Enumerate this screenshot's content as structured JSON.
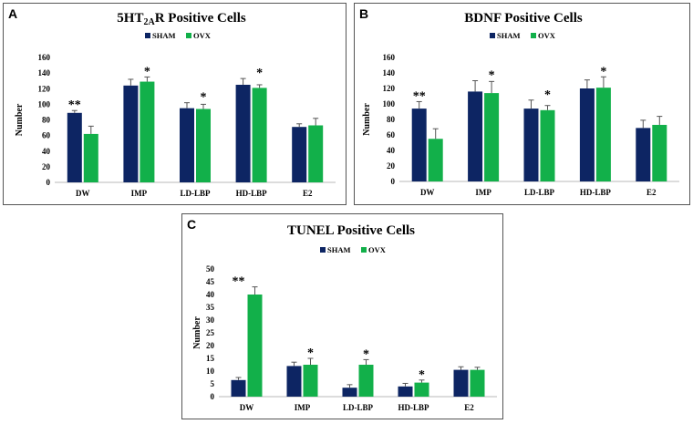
{
  "colors": {
    "sham": "#0d2563",
    "ovx": "#12b04a",
    "axis": "#b8b8b8",
    "error": "#555555"
  },
  "chart_data": [
    {
      "panel_label": "A",
      "type": "bar",
      "title": "5HT2AR Positive Cells",
      "title_parts": {
        "pre": "5HT",
        "sub": "2A",
        "post": "R Positive Cells"
      },
      "xlabel": "",
      "ylabel": "Number",
      "ylim": [
        0,
        160
      ],
      "yticks": [
        "0",
        "20",
        "40",
        "60",
        "80",
        "100",
        "120",
        "140",
        "160"
      ],
      "categories": [
        "DW",
        "IMP",
        "LD-LBP",
        "HD-LBP",
        "E2"
      ],
      "series": [
        {
          "name": "SHAM",
          "values": [
            89,
            124,
            95,
            125,
            71
          ],
          "errors": [
            3,
            8,
            7,
            8,
            4
          ]
        },
        {
          "name": "OVX",
          "values": [
            62,
            129,
            94,
            121,
            73
          ],
          "errors": [
            10,
            6,
            6,
            4,
            9
          ]
        }
      ],
      "annotations": [
        "**",
        "*",
        "*",
        "*",
        ""
      ]
    },
    {
      "panel_label": "B",
      "type": "bar",
      "title": "BDNF Positive Cells",
      "xlabel": "",
      "ylabel": "Number",
      "ylim": [
        0,
        160
      ],
      "yticks": [
        "0",
        "20",
        "40",
        "60",
        "80",
        "100",
        "120",
        "140",
        "160"
      ],
      "categories": [
        "DW",
        "IMP",
        "LD-LBP",
        "HD-LBP",
        "E2"
      ],
      "series": [
        {
          "name": "SHAM",
          "values": [
            94,
            116,
            94,
            120,
            69
          ],
          "errors": [
            9,
            14,
            11,
            11,
            10
          ]
        },
        {
          "name": "OVX",
          "values": [
            55,
            114,
            92,
            121,
            73
          ],
          "errors": [
            13,
            15,
            6,
            14,
            11
          ]
        }
      ],
      "annotations": [
        "**",
        "*",
        "*",
        "*",
        ""
      ]
    },
    {
      "panel_label": "C",
      "type": "bar",
      "title": "TUNEL Positive Cells",
      "xlabel": "",
      "ylabel": "Number",
      "ylim": [
        0,
        50
      ],
      "yticks": [
        "0",
        "5",
        "10",
        "15",
        "20",
        "25",
        "30",
        "35",
        "40",
        "45",
        "50"
      ],
      "categories": [
        "DW",
        "IMP",
        "LD-LBP",
        "HD-LBP",
        "E2"
      ],
      "series": [
        {
          "name": "SHAM",
          "values": [
            6.5,
            12,
            3.5,
            4,
            10.5
          ],
          "errors": [
            1,
            1.5,
            1.2,
            1.2,
            1.2
          ]
        },
        {
          "name": "OVX",
          "values": [
            40,
            12.5,
            12.5,
            5.5,
            10.5
          ],
          "errors": [
            3,
            2.5,
            2,
            1,
            1
          ]
        }
      ],
      "annotations": [
        "**",
        "*",
        "*",
        "*",
        ""
      ]
    }
  ]
}
